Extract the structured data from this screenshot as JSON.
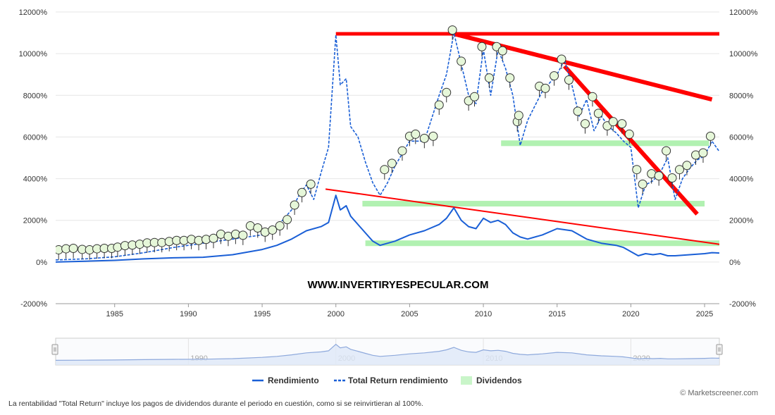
{
  "watermark": "WWW.INVERTIRYESPECULAR.COM",
  "credit": "© Marketscreener.com",
  "footnote": "La rentabilidad \"Total Return\" incluye los pagos de dividendos durante el periodo en cuestión, como si se reinvirtieran al 100%.",
  "colors": {
    "rendimiento": "#1a5fd6",
    "total_return": "#1a5fd6",
    "dividendos": "#a8f0a8",
    "annotation_red": "#ff0000",
    "dividend_marker_fill": "#e6f7d9",
    "navigator_fill": "#dfe8f7"
  },
  "chart_data": {
    "type": "line",
    "xlim": [
      1981,
      2026
    ],
    "ylim": [
      -2000,
      12000
    ],
    "y_ticks": [
      "12000%",
      "10000%",
      "8000%",
      "6000%",
      "4000%",
      "2000%",
      "0%",
      "-2000%"
    ],
    "y_tick_values": [
      12000,
      10000,
      8000,
      6000,
      4000,
      2000,
      0,
      -2000
    ],
    "x_ticks": [
      "1985",
      "1990",
      "1995",
      "2000",
      "2005",
      "2010",
      "2015",
      "2020",
      "2025"
    ],
    "x_tick_values": [
      1985,
      1990,
      1995,
      2000,
      2005,
      2010,
      2015,
      2020,
      2025
    ],
    "grid": true,
    "legend_position": "bottom",
    "series": [
      {
        "name": "Rendimiento",
        "style": "solid",
        "x": [
          1981,
          1983,
          1985,
          1987,
          1989,
          1991,
          1993,
          1995,
          1996,
          1997,
          1998,
          1999,
          1999.5,
          2000,
          2000.3,
          2000.7,
          2001,
          2001.5,
          2002,
          2002.5,
          2003,
          2004,
          2005,
          2006,
          2007,
          2007.5,
          2008,
          2008.5,
          2009,
          2009.5,
          2010,
          2010.5,
          2011,
          2011.5,
          2012,
          2012.5,
          2013,
          2014,
          2015,
          2016,
          2017,
          2018,
          2019,
          2019.5,
          2020,
          2020.5,
          2021,
          2021.5,
          2022,
          2022.5,
          2023,
          2024,
          2025,
          2025.5,
          2026
        ],
        "values": [
          0,
          40,
          80,
          150,
          200,
          230,
          350,
          600,
          800,
          1100,
          1500,
          1700,
          1900,
          3200,
          2500,
          2700,
          2200,
          1800,
          1400,
          1000,
          800,
          1000,
          1300,
          1500,
          1800,
          2100,
          2600,
          2000,
          1700,
          1600,
          2100,
          1900,
          2000,
          1800,
          1400,
          1200,
          1100,
          1300,
          1600,
          1500,
          1100,
          900,
          800,
          700,
          500,
          300,
          400,
          350,
          400,
          300,
          300,
          350,
          400,
          450,
          430
        ]
      },
      {
        "name": "Total Return rendimiento",
        "style": "dashed",
        "x": [
          1981,
          1983,
          1985,
          1987,
          1989,
          1991,
          1993,
          1995,
          1996,
          1997,
          1997.5,
          1998,
          1998.5,
          1999,
          1999.5,
          2000,
          2000.3,
          2000.7,
          2001,
          2001.5,
          2002,
          2002.5,
          2003,
          2003.5,
          2004,
          2005,
          2006,
          2007,
          2007.5,
          2008,
          2008.5,
          2009,
          2009.5,
          2010,
          2010.5,
          2011,
          2011.5,
          2012,
          2012.5,
          2013,
          2013.5,
          2014,
          2015,
          2015.5,
          2016,
          2016.5,
          2017,
          2017.5,
          2018,
          2018.5,
          2019,
          2019.5,
          2020,
          2020.5,
          2021,
          2021.5,
          2022,
          2022.5,
          2023,
          2023.5,
          2024,
          2024.5,
          2025,
          2025.5,
          2026
        ],
        "values": [
          100,
          150,
          250,
          450,
          700,
          900,
          1100,
          1300,
          1700,
          2500,
          3200,
          3700,
          3000,
          4300,
          5500,
          10900,
          8500,
          8800,
          6500,
          6000,
          4800,
          3800,
          3200,
          3800,
          4600,
          5800,
          5800,
          8000,
          9000,
          11000,
          9500,
          8000,
          7600,
          10200,
          8000,
          10200,
          9300,
          8000,
          5600,
          6800,
          7500,
          8200,
          9000,
          9700,
          8500,
          7000,
          7800,
          6300,
          7000,
          6500,
          6200,
          5800,
          5500,
          2600,
          3700,
          3900,
          4300,
          5000,
          3000,
          4000,
          4500,
          4900,
          5100,
          5800,
          5300
        ]
      }
    ],
    "dividend_markers": {
      "x": [
        1981.2,
        1981.7,
        1982.2,
        1982.8,
        1983.3,
        1983.8,
        1984.3,
        1984.8,
        1985.2,
        1985.7,
        1986.2,
        1986.7,
        1987.2,
        1987.7,
        1988.2,
        1988.7,
        1989.2,
        1989.7,
        1990.2,
        1990.7,
        1991.2,
        1991.7,
        1992.2,
        1992.7,
        1993.2,
        1993.7,
        1994.2,
        1994.7,
        1995.2,
        1995.7,
        1996.2,
        1996.7,
        1997.2,
        1997.7,
        1998.3,
        2003.3,
        2003.8,
        2004.5,
        2005.0,
        2005.4,
        2006.0,
        2006.6,
        2007.0,
        2007.5,
        2007.9,
        2008.5,
        2009.0,
        2009.4,
        2009.9,
        2010.4,
        2010.9,
        2011.3,
        2011.8,
        2012.3,
        2012.4,
        2013.8,
        2014.2,
        2014.8,
        2015.3,
        2015.8,
        2016.4,
        2016.9,
        2017.4,
        2017.8,
        2018.4,
        2018.8,
        2019.4,
        2019.9,
        2020.4,
        2020.8,
        2021.4,
        2021.9,
        2022.4,
        2022.8,
        2023.3,
        2023.8,
        2024.4,
        2024.9,
        2025.4
      ],
      "values": [
        450,
        500,
        520,
        470,
        450,
        500,
        520,
        520,
        580,
        650,
        680,
        720,
        780,
        800,
        800,
        850,
        900,
        900,
        950,
        900,
        950,
        1000,
        1200,
        1100,
        1200,
        1150,
        1600,
        1500,
        1300,
        1400,
        1600,
        1900,
        2600,
        3200,
        3600,
        4300,
        4600,
        5200,
        5900,
        6000,
        5800,
        5900,
        7400,
        8000,
        11000,
        9500,
        7600,
        7800,
        10200,
        8700,
        10200,
        10000,
        8700,
        6600,
        6900,
        8300,
        8200,
        8800,
        9600,
        8600,
        7100,
        6500,
        7800,
        7000,
        6400,
        6600,
        6500,
        6000,
        4300,
        3600,
        4100,
        4000,
        5200,
        3900,
        4300,
        4500,
        5000,
        5100,
        5900
      ]
    },
    "dividend_bands": [
      {
        "x": [
          2011.2,
          2025.3
        ],
        "y": 5700
      },
      {
        "x": [
          2001.8,
          2025.0
        ],
        "y": 2800
      },
      {
        "x": [
          2002.0,
          2026.0
        ],
        "y": 900
      }
    ],
    "trendlines": [
      {
        "x": [
          2000.0,
          2026.0
        ],
        "y": [
          10950,
          10950
        ],
        "width": 5
      },
      {
        "x": [
          2008.0,
          2025.5
        ],
        "y": [
          10950,
          7800
        ],
        "width": 6
      },
      {
        "x": [
          2015.5,
          2024.5
        ],
        "y": [
          9400,
          2300
        ],
        "width": 6
      },
      {
        "x": [
          1999.3,
          2026.0
        ],
        "y": [
          3500,
          850
        ],
        "width": 2
      }
    ],
    "navigator": {
      "x_ticks": [
        "1990",
        "2000",
        "2010",
        "2020"
      ],
      "x_tick_values": [
        1990,
        2000,
        2010,
        2020
      ]
    }
  },
  "legend": [
    {
      "label": "Rendimiento",
      "type": "solid"
    },
    {
      "label": "Total Return rendimiento",
      "type": "dashed"
    },
    {
      "label": "Dividendos",
      "type": "band"
    }
  ]
}
